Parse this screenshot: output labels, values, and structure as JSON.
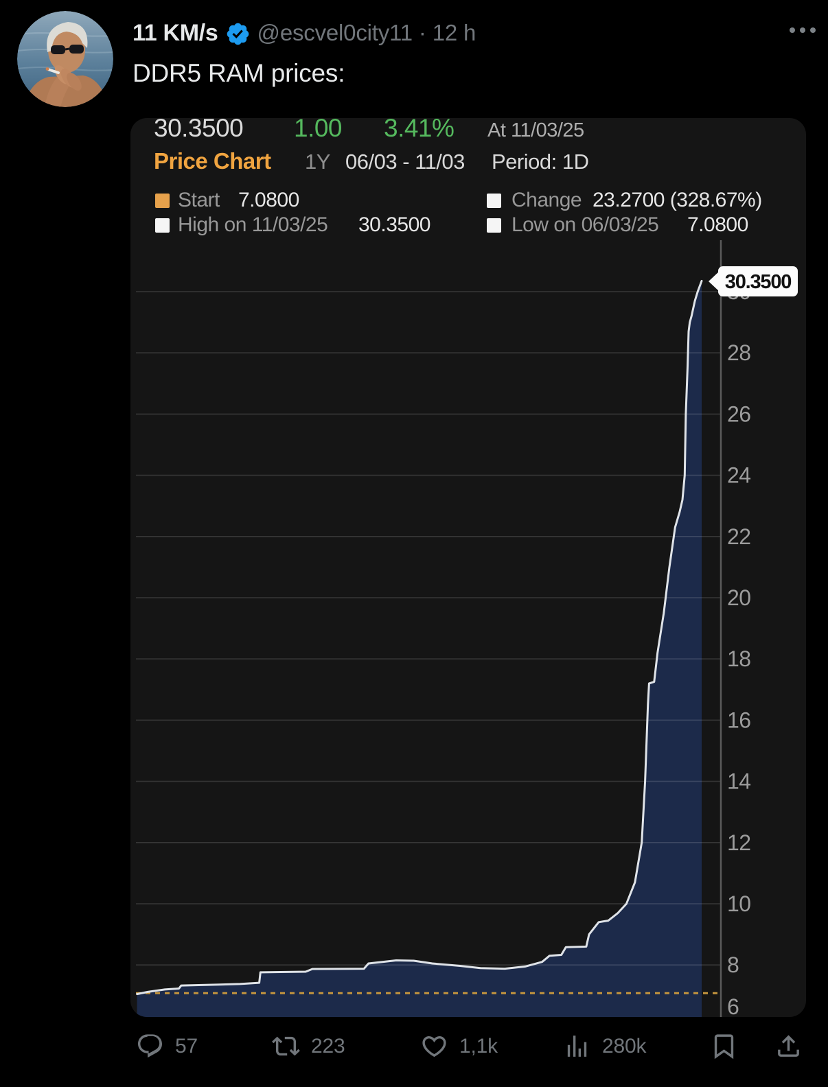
{
  "tweet": {
    "author_name": "11 KM/s",
    "handle": "@escvel0city11",
    "separator": "·",
    "time": "12 h",
    "text": "DDR5 RAM prices:"
  },
  "actions": {
    "reply_count": "57",
    "repost_count": "223",
    "like_count": "1,1k",
    "view_count": "280k"
  },
  "icons": {
    "verified_badge": "blue-check-seal",
    "more": "ellipsis",
    "reply": "speech-bubble",
    "repost": "retweet-arrows",
    "like": "heart-outline",
    "views": "bar-chart",
    "bookmark": "bookmark-outline",
    "share": "arrow-up-from-tray"
  },
  "colors": {
    "badge": "#1d9bf0",
    "green": "#55b95e",
    "orange_title": "#f0a440",
    "chart_bg": "#151515",
    "area_fill": "#1c2a4a",
    "line": "#dfe3e8",
    "grid": "rgba(255,255,255,0.14)",
    "axis": "#5a5a5a",
    "tick_text": "#9c9c9c",
    "dotted_start": "#c4953e",
    "callout_bg": "#fcfcfc",
    "callout_text": "#111111",
    "swatch_start": "#e6a14b",
    "swatch_white": "#f5f5f5"
  },
  "chart": {
    "quote": {
      "last": "30.3500",
      "change": "1.00",
      "change_pct": "3.41%",
      "as_of": "At 11/03/25"
    },
    "toolbar": {
      "title": "Price Chart",
      "range": "1Y",
      "date_range": "06/03 - 11/03",
      "period": "Period: 1D"
    },
    "legend": {
      "start_label": "Start",
      "start_value": "7.0800",
      "change_label": "Change",
      "change_value": "23.2700 (328.67%)",
      "high_label": "High on 11/03/25",
      "high_value": "30.3500",
      "low_label": "Low on 06/03/25",
      "low_value": "7.0800"
    }
  },
  "chart_data": {
    "type": "area",
    "title": "Price Chart",
    "xlabel": "",
    "ylabel": "",
    "x_range_label": "06/03 - 11/03",
    "period": "1D",
    "ylim": [
      6,
      31.5
    ],
    "y_ticks": [
      6,
      8,
      10,
      12,
      14,
      16,
      18,
      20,
      22,
      24,
      26,
      28,
      30
    ],
    "grid": "horizontal",
    "start_value": 7.08,
    "last_value": 30.35,
    "last_price_label": "30.3500",
    "high": 30.35,
    "low": 7.08,
    "change": 23.27,
    "change_pct": 328.67,
    "series": [
      {
        "name": "DDR5 RAM price",
        "points": [
          [
            0.002,
            7.05
          ],
          [
            0.021,
            7.12
          ],
          [
            0.051,
            7.2
          ],
          [
            0.076,
            7.23
          ],
          [
            0.08,
            7.33
          ],
          [
            0.148,
            7.36
          ],
          [
            0.184,
            7.38
          ],
          [
            0.218,
            7.42
          ],
          [
            0.22,
            7.76
          ],
          [
            0.3,
            7.78
          ],
          [
            0.312,
            7.87
          ],
          [
            0.403,
            7.88
          ],
          [
            0.411,
            8.05
          ],
          [
            0.46,
            8.15
          ],
          [
            0.491,
            8.14
          ],
          [
            0.524,
            8.05
          ],
          [
            0.573,
            7.97
          ],
          [
            0.609,
            7.9
          ],
          [
            0.652,
            7.88
          ],
          [
            0.688,
            7.95
          ],
          [
            0.718,
            8.1
          ],
          [
            0.731,
            8.3
          ],
          [
            0.752,
            8.33
          ],
          [
            0.76,
            8.58
          ],
          [
            0.796,
            8.6
          ],
          [
            0.801,
            9.0
          ],
          [
            0.818,
            9.4
          ],
          [
            0.835,
            9.45
          ],
          [
            0.852,
            9.7
          ],
          [
            0.867,
            10.0
          ],
          [
            0.882,
            10.7
          ],
          [
            0.894,
            12.0
          ],
          [
            0.9,
            14.0
          ],
          [
            0.905,
            16.5
          ],
          [
            0.907,
            17.2
          ],
          [
            0.916,
            17.25
          ],
          [
            0.922,
            18.2
          ],
          [
            0.933,
            19.5
          ],
          [
            0.943,
            21.0
          ],
          [
            0.953,
            22.3
          ],
          [
            0.961,
            22.8
          ],
          [
            0.966,
            23.2
          ],
          [
            0.97,
            24.0
          ],
          [
            0.972,
            26.0
          ],
          [
            0.975,
            27.5
          ],
          [
            0.977,
            28.7
          ],
          [
            0.979,
            29.0
          ],
          [
            0.982,
            29.2
          ],
          [
            0.988,
            29.7
          ],
          [
            0.993,
            30.0
          ],
          [
            1.0,
            30.35
          ]
        ]
      }
    ]
  }
}
